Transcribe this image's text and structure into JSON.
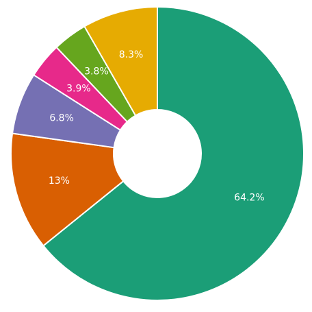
{
  "chart_data": {
    "type": "pie",
    "donut": true,
    "title": "",
    "legend": "none",
    "slices": [
      {
        "label": "64.2%",
        "value": 64.2,
        "color": "#1b9e77"
      },
      {
        "label": "13%",
        "value": 13.0,
        "color": "#d95f02"
      },
      {
        "label": "6.8%",
        "value": 6.8,
        "color": "#7570b3"
      },
      {
        "label": "3.9%",
        "value": 3.9,
        "color": "#e7298a"
      },
      {
        "label": "3.8%",
        "value": 3.8,
        "color": "#66a61e"
      },
      {
        "label": "8.3%",
        "value": 8.3,
        "color": "#e6ab02"
      }
    ],
    "start": "top",
    "direction": "clockwise"
  }
}
